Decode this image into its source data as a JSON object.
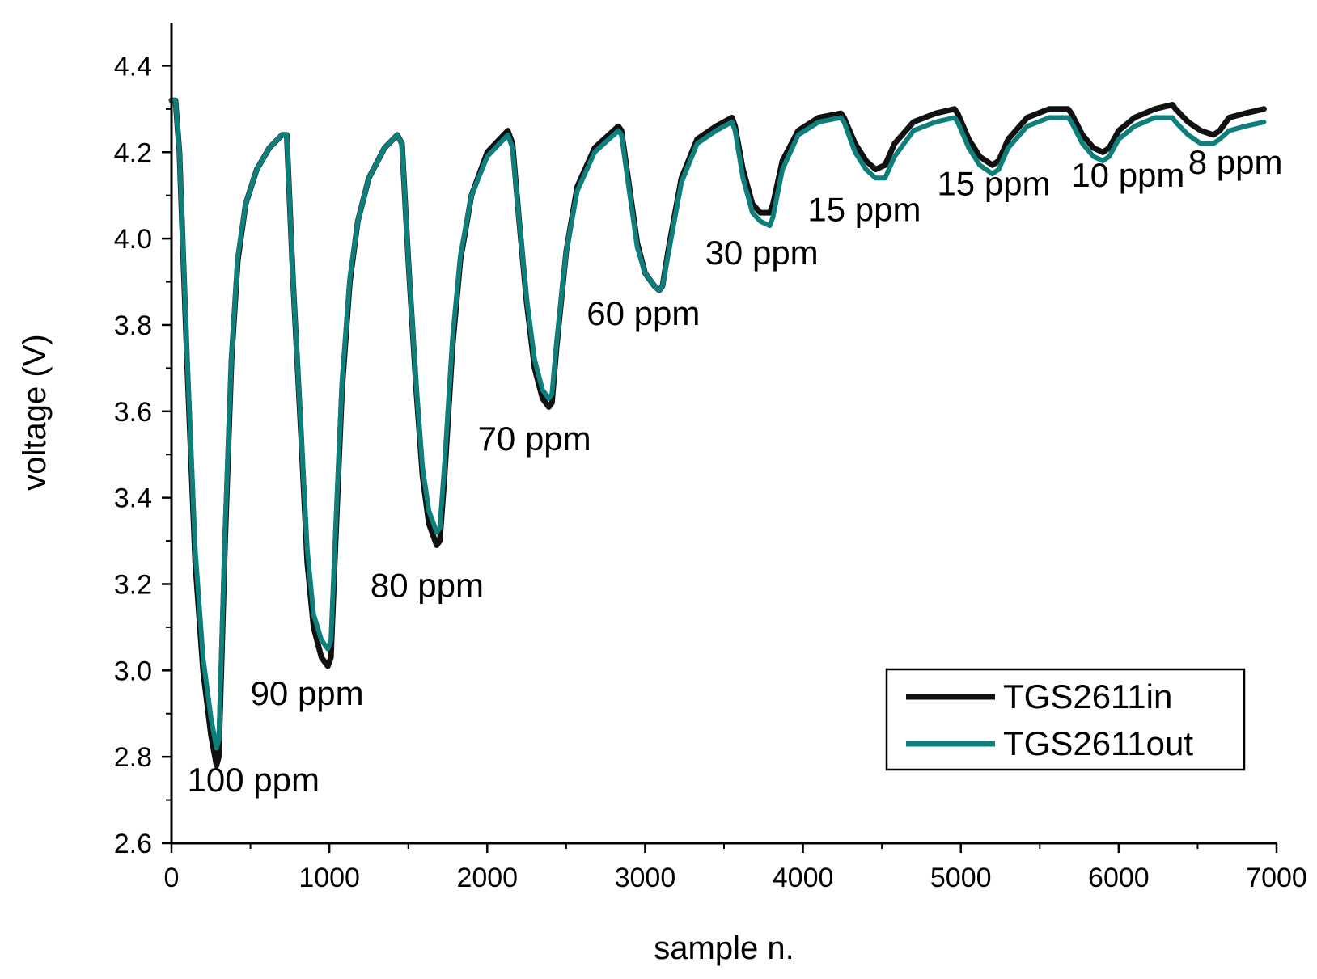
{
  "chart_data": {
    "type": "line",
    "title": "",
    "xlabel": "sample n.",
    "ylabel": "voltage (V)",
    "xlim": [
      0,
      7000
    ],
    "ylim": [
      2.6,
      4.5
    ],
    "xticks": [
      0,
      1000,
      2000,
      3000,
      4000,
      5000,
      6000,
      7000
    ],
    "xtick_labels": [
      "0",
      "1000",
      "2000",
      "3000",
      "4000",
      "5000",
      "6000",
      "7000"
    ],
    "yticks": [
      2.6,
      2.8,
      3.0,
      3.2,
      3.4,
      3.6,
      3.8,
      4.0,
      4.2,
      4.4
    ],
    "ytick_labels": [
      "2.6",
      "2.8",
      "3.0",
      "3.2",
      "3.4",
      "3.6",
      "3.8",
      "4.0",
      "4.2",
      "4.4"
    ],
    "grid": false,
    "legend_position": "bottom-right",
    "series": [
      {
        "name": "TGS2611in",
        "color": "#111111",
        "points": [
          [
            0,
            4.32
          ],
          [
            25,
            4.32
          ],
          [
            50,
            4.2
          ],
          [
            100,
            3.7
          ],
          [
            150,
            3.25
          ],
          [
            200,
            3.0
          ],
          [
            250,
            2.85
          ],
          [
            285,
            2.78
          ],
          [
            300,
            2.8
          ],
          [
            340,
            3.3
          ],
          [
            380,
            3.72
          ],
          [
            420,
            3.95
          ],
          [
            470,
            4.08
          ],
          [
            540,
            4.16
          ],
          [
            620,
            4.21
          ],
          [
            700,
            4.24
          ],
          [
            730,
            4.24
          ],
          [
            770,
            3.9
          ],
          [
            820,
            3.55
          ],
          [
            860,
            3.25
          ],
          [
            900,
            3.1
          ],
          [
            950,
            3.03
          ],
          [
            990,
            3.01
          ],
          [
            1010,
            3.03
          ],
          [
            1040,
            3.3
          ],
          [
            1080,
            3.65
          ],
          [
            1130,
            3.9
          ],
          [
            1180,
            4.04
          ],
          [
            1250,
            4.14
          ],
          [
            1350,
            4.21
          ],
          [
            1430,
            4.24
          ],
          [
            1460,
            4.22
          ],
          [
            1500,
            3.95
          ],
          [
            1550,
            3.65
          ],
          [
            1590,
            3.45
          ],
          [
            1630,
            3.34
          ],
          [
            1680,
            3.29
          ],
          [
            1700,
            3.3
          ],
          [
            1730,
            3.45
          ],
          [
            1780,
            3.75
          ],
          [
            1830,
            3.95
          ],
          [
            1900,
            4.1
          ],
          [
            2000,
            4.2
          ],
          [
            2130,
            4.25
          ],
          [
            2160,
            4.22
          ],
          [
            2200,
            4.05
          ],
          [
            2250,
            3.85
          ],
          [
            2300,
            3.7
          ],
          [
            2350,
            3.63
          ],
          [
            2390,
            3.61
          ],
          [
            2410,
            3.62
          ],
          [
            2440,
            3.75
          ],
          [
            2500,
            3.97
          ],
          [
            2570,
            4.12
          ],
          [
            2680,
            4.21
          ],
          [
            2830,
            4.26
          ],
          [
            2850,
            4.25
          ],
          [
            2900,
            4.12
          ],
          [
            2950,
            3.99
          ],
          [
            3000,
            3.92
          ],
          [
            3060,
            3.89
          ],
          [
            3090,
            3.88
          ],
          [
            3110,
            3.89
          ],
          [
            3150,
            3.98
          ],
          [
            3230,
            4.14
          ],
          [
            3330,
            4.23
          ],
          [
            3450,
            4.26
          ],
          [
            3550,
            4.28
          ],
          [
            3570,
            4.26
          ],
          [
            3620,
            4.16
          ],
          [
            3680,
            4.08
          ],
          [
            3730,
            4.06
          ],
          [
            3790,
            4.06
          ],
          [
            3810,
            4.08
          ],
          [
            3870,
            4.18
          ],
          [
            3970,
            4.25
          ],
          [
            4100,
            4.28
          ],
          [
            4240,
            4.29
          ],
          [
            4260,
            4.28
          ],
          [
            4330,
            4.22
          ],
          [
            4400,
            4.18
          ],
          [
            4460,
            4.16
          ],
          [
            4520,
            4.17
          ],
          [
            4580,
            4.22
          ],
          [
            4700,
            4.27
          ],
          [
            4840,
            4.29
          ],
          [
            4960,
            4.3
          ],
          [
            4980,
            4.29
          ],
          [
            5050,
            4.23
          ],
          [
            5120,
            4.19
          ],
          [
            5200,
            4.17
          ],
          [
            5240,
            4.18
          ],
          [
            5300,
            4.23
          ],
          [
            5420,
            4.28
          ],
          [
            5560,
            4.3
          ],
          [
            5680,
            4.3
          ],
          [
            5700,
            4.29
          ],
          [
            5770,
            4.24
          ],
          [
            5840,
            4.21
          ],
          [
            5900,
            4.2
          ],
          [
            5940,
            4.21
          ],
          [
            6000,
            4.25
          ],
          [
            6100,
            4.28
          ],
          [
            6230,
            4.3
          ],
          [
            6340,
            4.31
          ],
          [
            6360,
            4.3
          ],
          [
            6440,
            4.27
          ],
          [
            6520,
            4.25
          ],
          [
            6600,
            4.24
          ],
          [
            6640,
            4.25
          ],
          [
            6700,
            4.28
          ],
          [
            6800,
            4.29
          ],
          [
            6920,
            4.3
          ]
        ]
      },
      {
        "name": "TGS2611out",
        "color": "#0e7f7c",
        "points": [
          [
            0,
            4.32
          ],
          [
            25,
            4.32
          ],
          [
            50,
            4.2
          ],
          [
            100,
            3.72
          ],
          [
            150,
            3.28
          ],
          [
            200,
            3.03
          ],
          [
            250,
            2.89
          ],
          [
            285,
            2.82
          ],
          [
            300,
            2.84
          ],
          [
            340,
            3.33
          ],
          [
            380,
            3.73
          ],
          [
            420,
            3.96
          ],
          [
            470,
            4.08
          ],
          [
            540,
            4.16
          ],
          [
            620,
            4.21
          ],
          [
            700,
            4.24
          ],
          [
            730,
            4.24
          ],
          [
            770,
            3.9
          ],
          [
            820,
            3.56
          ],
          [
            860,
            3.28
          ],
          [
            900,
            3.13
          ],
          [
            950,
            3.07
          ],
          [
            990,
            3.05
          ],
          [
            1010,
            3.07
          ],
          [
            1040,
            3.33
          ],
          [
            1080,
            3.67
          ],
          [
            1130,
            3.91
          ],
          [
            1180,
            4.04
          ],
          [
            1250,
            4.14
          ],
          [
            1350,
            4.21
          ],
          [
            1430,
            4.24
          ],
          [
            1460,
            4.22
          ],
          [
            1500,
            3.95
          ],
          [
            1550,
            3.66
          ],
          [
            1590,
            3.47
          ],
          [
            1630,
            3.37
          ],
          [
            1680,
            3.32
          ],
          [
            1700,
            3.33
          ],
          [
            1730,
            3.48
          ],
          [
            1780,
            3.77
          ],
          [
            1830,
            3.96
          ],
          [
            1900,
            4.1
          ],
          [
            2000,
            4.19
          ],
          [
            2130,
            4.24
          ],
          [
            2160,
            4.21
          ],
          [
            2200,
            4.05
          ],
          [
            2250,
            3.86
          ],
          [
            2300,
            3.72
          ],
          [
            2350,
            3.65
          ],
          [
            2390,
            3.63
          ],
          [
            2410,
            3.64
          ],
          [
            2440,
            3.76
          ],
          [
            2500,
            3.97
          ],
          [
            2570,
            4.11
          ],
          [
            2680,
            4.2
          ],
          [
            2830,
            4.25
          ],
          [
            2850,
            4.24
          ],
          [
            2900,
            4.11
          ],
          [
            2950,
            3.98
          ],
          [
            3000,
            3.92
          ],
          [
            3060,
            3.89
          ],
          [
            3090,
            3.88
          ],
          [
            3110,
            3.89
          ],
          [
            3150,
            3.97
          ],
          [
            3230,
            4.13
          ],
          [
            3330,
            4.22
          ],
          [
            3450,
            4.25
          ],
          [
            3550,
            4.27
          ],
          [
            3570,
            4.25
          ],
          [
            3620,
            4.14
          ],
          [
            3680,
            4.06
          ],
          [
            3730,
            4.04
          ],
          [
            3790,
            4.03
          ],
          [
            3810,
            4.05
          ],
          [
            3870,
            4.16
          ],
          [
            3970,
            4.24
          ],
          [
            4100,
            4.27
          ],
          [
            4240,
            4.28
          ],
          [
            4260,
            4.27
          ],
          [
            4330,
            4.2
          ],
          [
            4400,
            4.16
          ],
          [
            4460,
            4.14
          ],
          [
            4520,
            4.14
          ],
          [
            4580,
            4.19
          ],
          [
            4700,
            4.25
          ],
          [
            4840,
            4.27
          ],
          [
            4960,
            4.28
          ],
          [
            4980,
            4.27
          ],
          [
            5050,
            4.21
          ],
          [
            5120,
            4.17
          ],
          [
            5200,
            4.15
          ],
          [
            5240,
            4.16
          ],
          [
            5300,
            4.21
          ],
          [
            5420,
            4.26
          ],
          [
            5560,
            4.28
          ],
          [
            5680,
            4.28
          ],
          [
            5700,
            4.27
          ],
          [
            5770,
            4.22
          ],
          [
            5840,
            4.19
          ],
          [
            5900,
            4.18
          ],
          [
            5940,
            4.19
          ],
          [
            6000,
            4.23
          ],
          [
            6100,
            4.26
          ],
          [
            6230,
            4.28
          ],
          [
            6340,
            4.28
          ],
          [
            6360,
            4.27
          ],
          [
            6440,
            4.24
          ],
          [
            6520,
            4.22
          ],
          [
            6600,
            4.22
          ],
          [
            6640,
            4.23
          ],
          [
            6700,
            4.25
          ],
          [
            6800,
            4.26
          ],
          [
            6920,
            4.27
          ]
        ]
      }
    ],
    "annotations": [
      {
        "text": "100 ppm",
        "x": 100,
        "y": 2.72
      },
      {
        "text": "90 ppm",
        "x": 500,
        "y": 2.92
      },
      {
        "text": "80 ppm",
        "x": 1260,
        "y": 3.17
      },
      {
        "text": "70 ppm",
        "x": 1940,
        "y": 3.51
      },
      {
        "text": "60 ppm",
        "x": 2630,
        "y": 3.8
      },
      {
        "text": "30 ppm",
        "x": 3380,
        "y": 3.94
      },
      {
        "text": "15 ppm",
        "x": 4030,
        "y": 4.04
      },
      {
        "text": "15 ppm",
        "x": 4850,
        "y": 4.1
      },
      {
        "text": "10 ppm",
        "x": 5700,
        "y": 4.12
      },
      {
        "text": "8 ppm",
        "x": 6440,
        "y": 4.15
      }
    ]
  }
}
